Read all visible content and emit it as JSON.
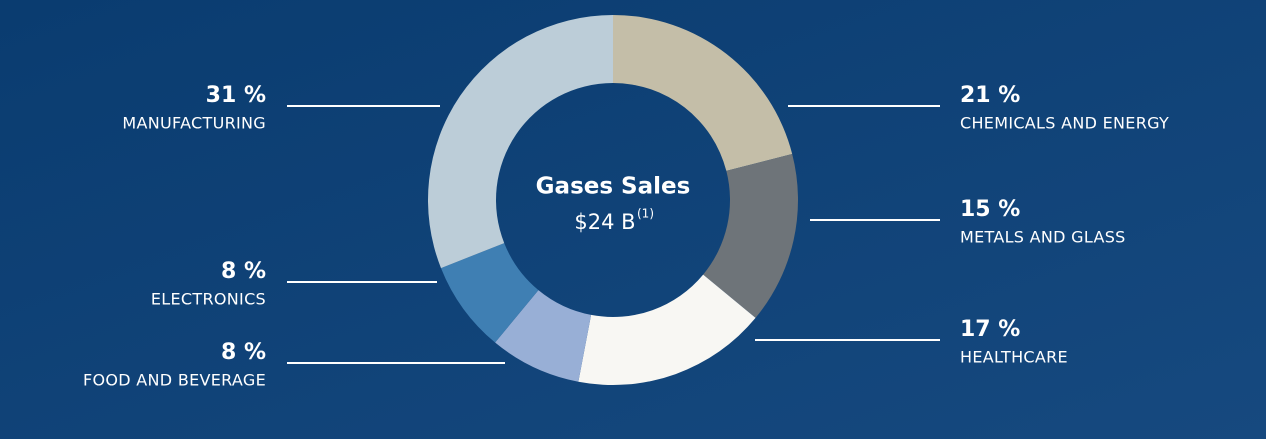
{
  "chart_data": {
    "type": "donut",
    "center_title": "Gases Sales",
    "center_value": "$24 B",
    "center_note": "(1)",
    "categories": [
      "CHEMICALS AND ENERGY",
      "METALS AND GLASS",
      "HEALTHCARE",
      "FOOD AND BEVERAGE",
      "ELECTRONICS",
      "MANUFACTURING"
    ],
    "values": [
      21,
      15,
      17,
      8,
      8,
      31
    ],
    "value_labels": [
      "21 %",
      "15 %",
      "17 %",
      "8 %",
      "8 %",
      "31 %"
    ],
    "colors": [
      "#c4bea8",
      "#6e7479",
      "#f8f7f3",
      "#98afd6",
      "#3f7fb3",
      "#bccdd8"
    ]
  }
}
